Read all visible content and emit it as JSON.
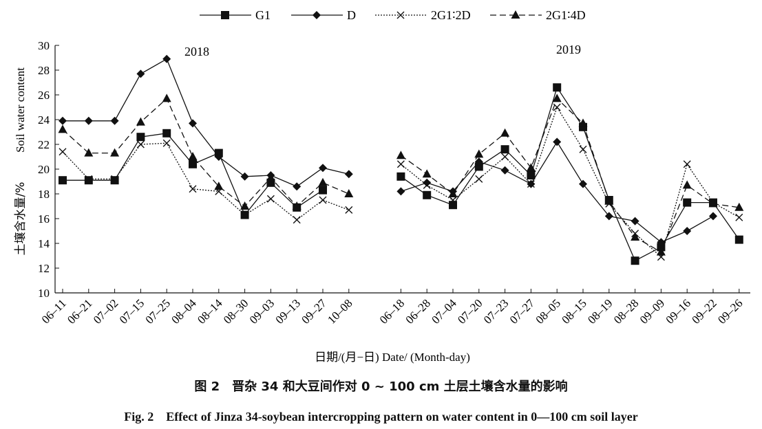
{
  "chart_data": {
    "type": "line",
    "ylabel_cn": "土壤含水量/%",
    "ylabel_en": "Soil water content",
    "xlabel": "日期/(月−日) Date/ (Month-day)",
    "ylim": [
      10,
      30
    ],
    "yticks": [
      10,
      12,
      14,
      16,
      18,
      20,
      22,
      24,
      26,
      28,
      30
    ],
    "legend_position": "top",
    "panels": [
      {
        "label": "2018",
        "categories": [
          "06–11",
          "06–21",
          "07–02",
          "07–15",
          "07–25",
          "08–04",
          "08–14",
          "08–30",
          "09–03",
          "09–13",
          "09–27",
          "10–08"
        ],
        "x_positions": [
          0,
          1,
          2,
          3,
          4,
          5,
          6,
          7,
          8,
          9,
          10,
          11
        ],
        "series": [
          {
            "name": "G1",
            "values": [
              19.1,
              19.1,
              19.1,
              22.6,
              22.9,
              20.4,
              21.3,
              16.3,
              18.9,
              16.9,
              18.3,
              null
            ]
          },
          {
            "name": "D",
            "values": [
              23.9,
              23.9,
              23.9,
              27.7,
              28.9,
              23.7,
              21.0,
              19.4,
              19.5,
              18.6,
              20.1,
              19.6
            ]
          },
          {
            "name": "2G1∶2D",
            "values": [
              21.4,
              19.2,
              19.2,
              22.0,
              22.1,
              18.4,
              18.2,
              16.3,
              17.6,
              15.9,
              17.5,
              16.7
            ]
          },
          {
            "name": "2G1∶4D",
            "values": [
              23.2,
              21.3,
              21.3,
              23.8,
              25.7,
              21.0,
              18.6,
              17.0,
              19.3,
              17.0,
              18.9,
              18.0
            ]
          }
        ]
      },
      {
        "label": "2019",
        "categories": [
          "06–18",
          "06–28",
          "07–04",
          "07–20",
          "07–23",
          "07–27",
          "08–05",
          "08–15",
          "08–19",
          "08–28",
          "09–09",
          "09–16",
          "09–22",
          "09–26"
        ],
        "x_positions": [
          13,
          14,
          15,
          16,
          17,
          18,
          19,
          20,
          21,
          22,
          23,
          24,
          25,
          26
        ],
        "series": [
          {
            "name": "G1",
            "values": [
              19.4,
              17.9,
              17.1,
              20.2,
              21.6,
              19.5,
              26.6,
              23.4,
              17.5,
              12.6,
              13.7,
              17.3,
              17.3,
              14.3
            ]
          },
          {
            "name": "D",
            "values": [
              18.2,
              18.9,
              18.2,
              20.6,
              19.9,
              18.8,
              22.2,
              18.8,
              16.2,
              15.8,
              14.1,
              15.0,
              16.2,
              null
            ]
          },
          {
            "name": "2G1∶2D",
            "values": [
              20.4,
              18.7,
              17.5,
              19.2,
              21.0,
              18.8,
              25.0,
              21.6,
              17.2,
              14.8,
              12.9,
              20.4,
              17.3,
              16.1
            ]
          },
          {
            "name": "2G1∶4D",
            "values": [
              21.1,
              19.6,
              18.0,
              21.2,
              22.9,
              20.1,
              25.7,
              23.7,
              17.4,
              14.5,
              13.3,
              18.7,
              17.2,
              16.9
            ]
          }
        ]
      }
    ]
  },
  "legend": [
    {
      "name": "G1",
      "marker": "square",
      "dash": "solid"
    },
    {
      "name": "D",
      "marker": "diamond",
      "dash": "solid"
    },
    {
      "name": "2G1∶2D",
      "marker": "cross",
      "dash": "dotted"
    },
    {
      "name": "2G1∶4D",
      "marker": "triangle",
      "dash": "dashed"
    }
  ],
  "caption_cn": "图 2　晋杂 34 和大豆间作对 0 ~ 100 cm 土层土壤含水量的影响",
  "caption_en": "Fig. 2　Effect of Jinza 34-soybean intercropping pattern  on water content in 0—100 cm soil layer"
}
